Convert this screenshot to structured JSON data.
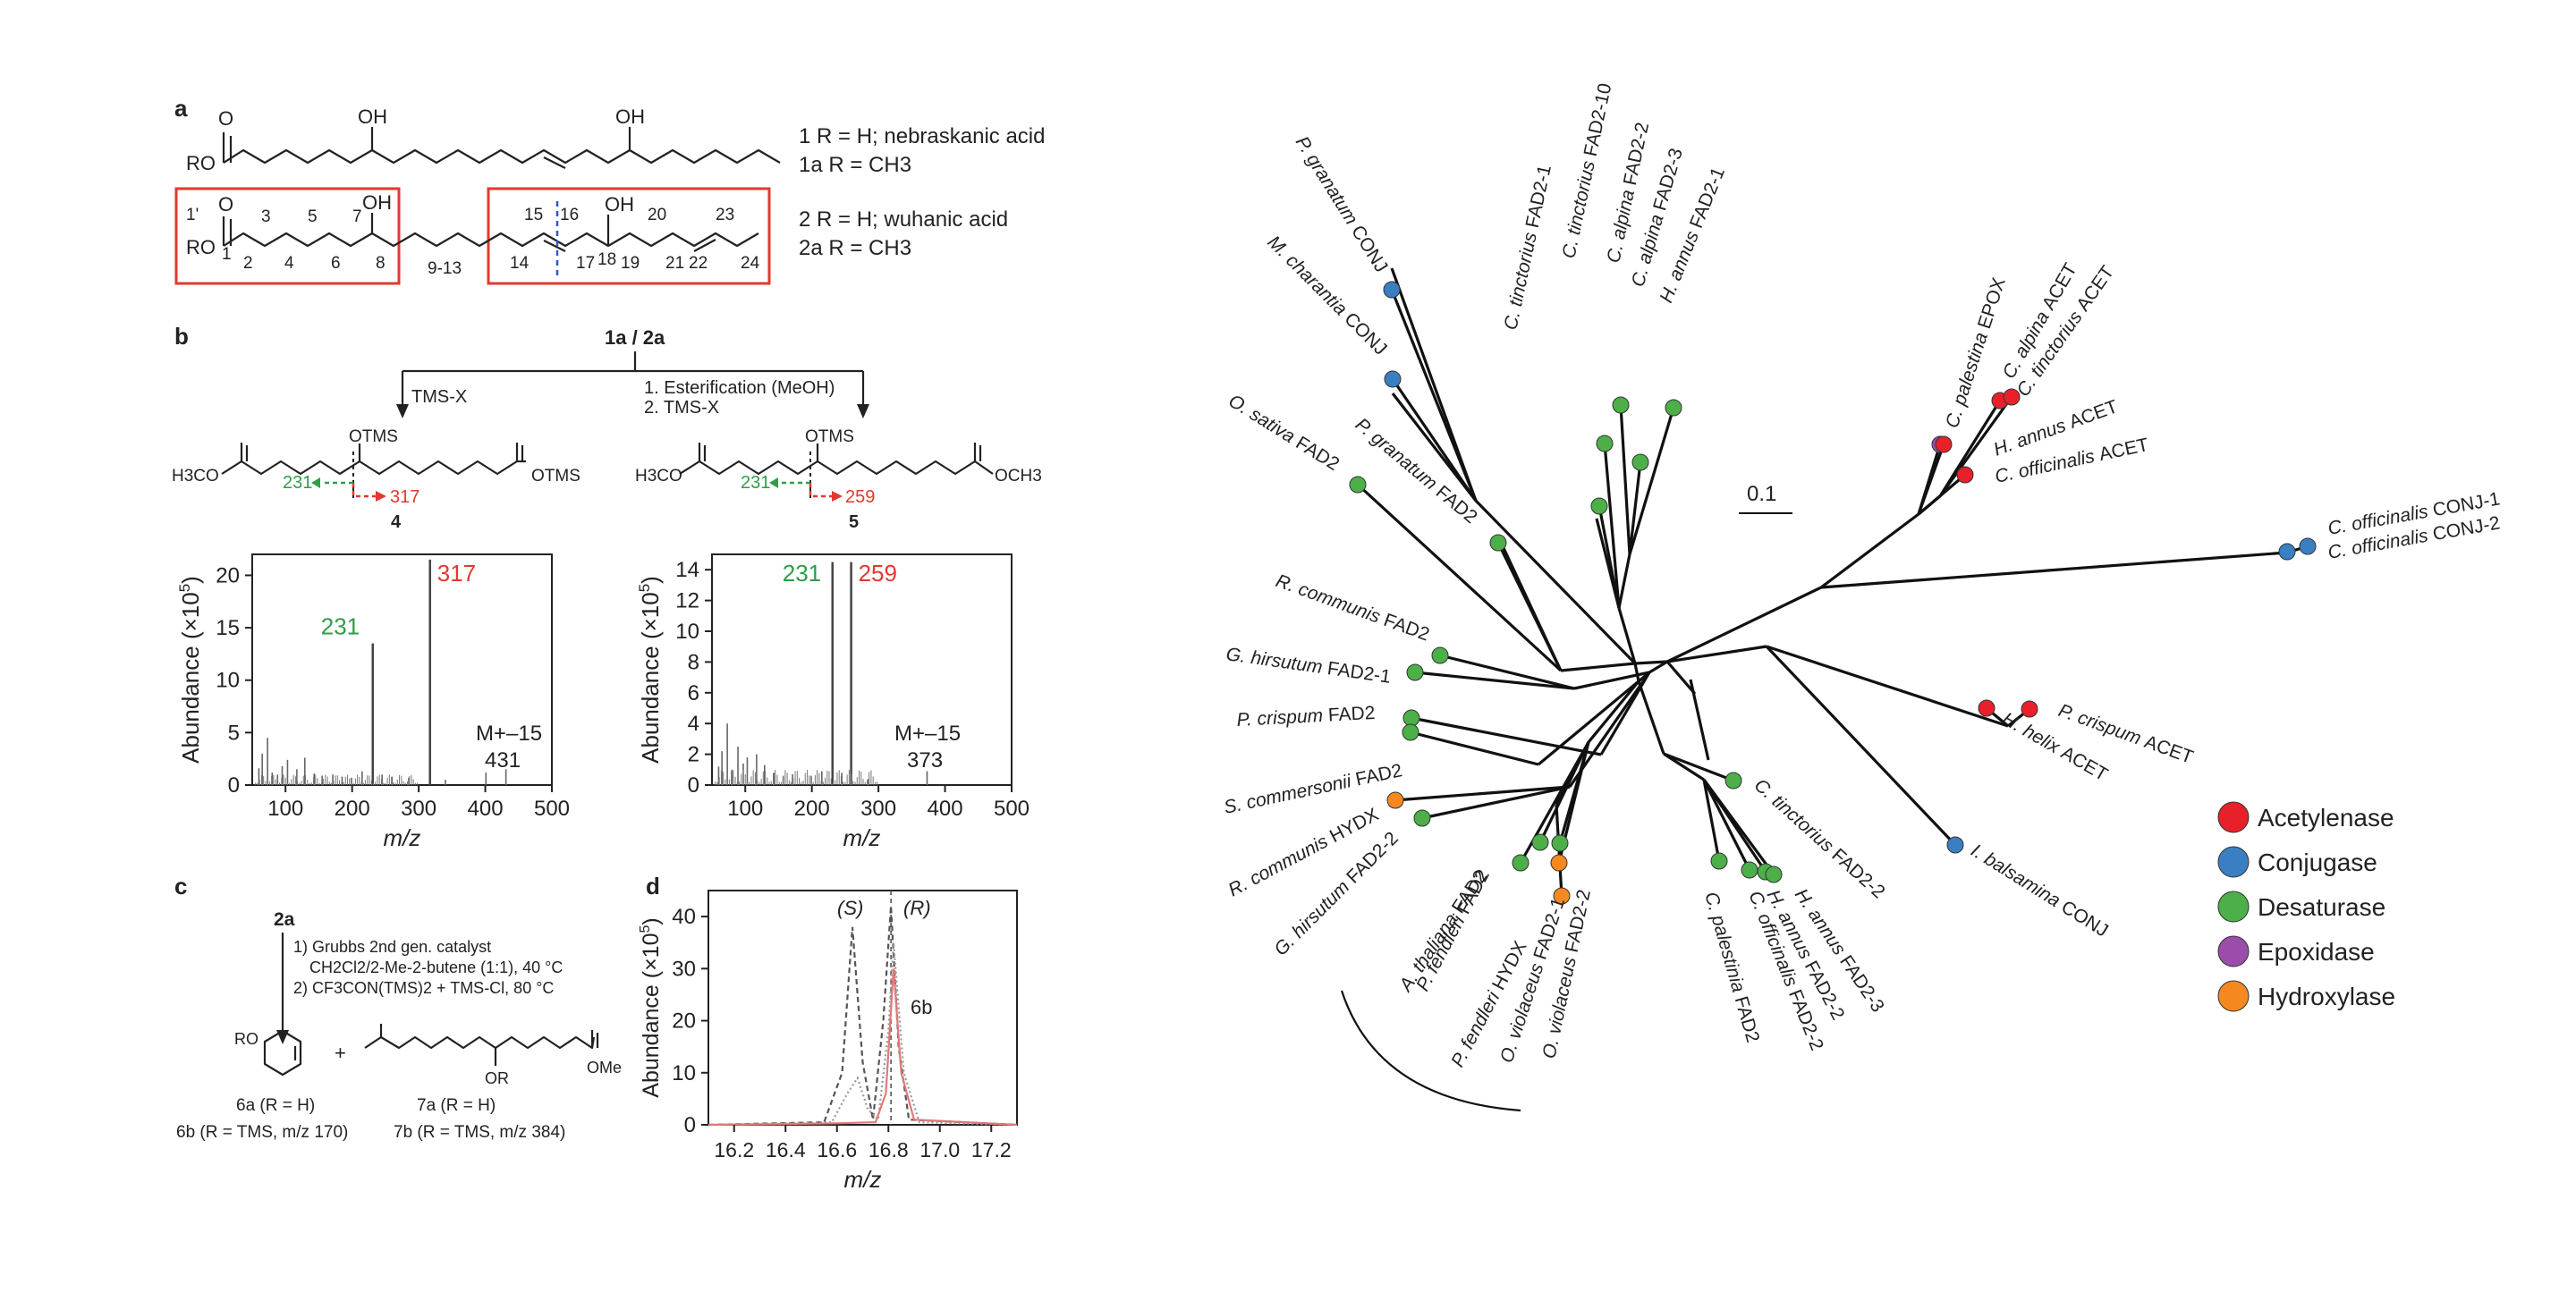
{
  "colors": {
    "acetylenase": "#e8202a",
    "conjugase": "#3a7fc3",
    "desaturase": "#4caf48",
    "epoxidase": "#9b4dab",
    "hydroxylase": "#f5891f",
    "accent_green": "#2e9e49",
    "accent_red": "#e03a2f"
  },
  "panel_a": {
    "label": "a",
    "line1_main": "1 R = H; nebraskanic acid",
    "line1_sub": "1a R = CH3",
    "line2_main": "2 R = H; wuhanic acid",
    "line2_sub": "2a R = CH3",
    "oh": "OH",
    "o": "O",
    "ro": "RO",
    "numbers": [
      "1'",
      "1",
      "2",
      "3",
      "4",
      "5",
      "6",
      "7",
      "8",
      "9-13",
      "14",
      "15",
      "16",
      "17",
      "18",
      "19",
      "20",
      "21",
      "22",
      "23",
      "24"
    ]
  },
  "panel_b": {
    "label": "b",
    "start": "1a / 2a",
    "left_step": "TMS-X",
    "right_step1": "1. Esterification (MeOH)",
    "right_step2": "2. TMS-X",
    "cmpd4": "4",
    "cmpd5": "5",
    "frag_231": "231",
    "frag_317": "317",
    "frag_259": "259",
    "otms": "OTMS",
    "h3co": "H3CO",
    "och3": "OCH3",
    "ylabel": "Abundance (×10",
    "xlabel": "m/z",
    "mplus_left": "M+–15",
    "mplus_left_val": "431",
    "mplus_right": "M+–15",
    "mplus_right_val": "373"
  },
  "panel_c": {
    "label": "c",
    "start": "2a",
    "step1": "1) Grubbs 2nd gen. catalyst",
    "step1b": "CH2Cl2/2-Me-2-butene (1:1), 40 °C",
    "step2": "2) CF3CON(TMS)2 + TMS-Cl, 80 °C",
    "plus": "+",
    "ro": "RO",
    "or": "OR",
    "ome": "OMe",
    "p6a": "6a (R = H)",
    "p6b": "6b (R = TMS, m/z 170)",
    "p7a": "7a (R = H)",
    "p7b": "7b (R = TMS, m/z 384)"
  },
  "panel_d": {
    "label": "d",
    "s_label": "(S)",
    "r_label": "(R)",
    "peak_label": "6b",
    "ylabel": "Abundance (×10",
    "xlabel": "m/z"
  },
  "chart_data": [
    {
      "type": "bar",
      "title": "",
      "xlabel": "m/z",
      "ylabel": "Abundance (×10^5)",
      "xlim": [
        50,
        500
      ],
      "ylim": [
        0,
        22
      ],
      "xticks": [
        100,
        200,
        300,
        400,
        500
      ],
      "yticks": [
        0,
        5,
        10,
        15,
        20
      ],
      "peaks": [
        {
          "x": 60,
          "y": 1.6
        },
        {
          "x": 65,
          "y": 3.0
        },
        {
          "x": 73,
          "y": 4.5
        },
        {
          "x": 80,
          "y": 1.2
        },
        {
          "x": 88,
          "y": 1.0
        },
        {
          "x": 95,
          "y": 1.8
        },
        {
          "x": 103,
          "y": 2.4
        },
        {
          "x": 117,
          "y": 1.5
        },
        {
          "x": 129,
          "y": 2.6
        },
        {
          "x": 143,
          "y": 1.1
        },
        {
          "x": 155,
          "y": 0.9
        },
        {
          "x": 171,
          "y": 1.0
        },
        {
          "x": 185,
          "y": 0.8
        },
        {
          "x": 199,
          "y": 0.7
        },
        {
          "x": 215,
          "y": 1.3
        },
        {
          "x": 231,
          "y": 13.5
        },
        {
          "x": 245,
          "y": 1.0
        },
        {
          "x": 260,
          "y": 0.8
        },
        {
          "x": 285,
          "y": 0.7
        },
        {
          "x": 317,
          "y": 21.5
        },
        {
          "x": 340,
          "y": 0.5
        },
        {
          "x": 401,
          "y": 1.2
        },
        {
          "x": 431,
          "y": 1.5
        }
      ],
      "labels": [
        {
          "x": 317,
          "text": "317"
        },
        {
          "x": 231,
          "text": "231"
        }
      ]
    },
    {
      "type": "bar",
      "title": "",
      "xlabel": "m/z",
      "ylabel": "Abundance (×10^5)",
      "xlim": [
        50,
        500
      ],
      "ylim": [
        0,
        15
      ],
      "xticks": [
        100,
        200,
        300,
        400,
        500
      ],
      "yticks": [
        0,
        2,
        4,
        6,
        8,
        10,
        12,
        14
      ],
      "peaks": [
        {
          "x": 60,
          "y": 1.2
        },
        {
          "x": 65,
          "y": 2.2
        },
        {
          "x": 73,
          "y": 4.0
        },
        {
          "x": 80,
          "y": 1.0
        },
        {
          "x": 89,
          "y": 2.5
        },
        {
          "x": 97,
          "y": 1.4
        },
        {
          "x": 103,
          "y": 1.8
        },
        {
          "x": 117,
          "y": 2.0
        },
        {
          "x": 129,
          "y": 1.3
        },
        {
          "x": 143,
          "y": 0.8
        },
        {
          "x": 157,
          "y": 0.6
        },
        {
          "x": 171,
          "y": 0.7
        },
        {
          "x": 199,
          "y": 0.6
        },
        {
          "x": 215,
          "y": 0.9
        },
        {
          "x": 231,
          "y": 14.5
        },
        {
          "x": 245,
          "y": 0.8
        },
        {
          "x": 259,
          "y": 14.5
        },
        {
          "x": 285,
          "y": 0.4
        },
        {
          "x": 373,
          "y": 0.9
        }
      ],
      "labels": [
        {
          "x": 231,
          "text": "231"
        },
        {
          "x": 259,
          "text": "259"
        }
      ]
    },
    {
      "type": "line",
      "title": "",
      "xlabel": "m/z",
      "ylabel": "Abundance (×10^5)",
      "xlim": [
        16.1,
        17.3
      ],
      "ylim": [
        0,
        45
      ],
      "xticks": [
        16.2,
        16.4,
        16.6,
        16.8,
        17.0,
        17.2
      ],
      "yticks": [
        0,
        10,
        20,
        30,
        40
      ],
      "series": [
        {
          "color": "#555555",
          "style": "dashed",
          "points": [
            [
              16.1,
              0
            ],
            [
              16.55,
              0.5
            ],
            [
              16.62,
              10
            ],
            [
              16.66,
              38
            ],
            [
              16.7,
              12
            ],
            [
              16.74,
              1
            ],
            [
              16.78,
              20
            ],
            [
              16.81,
              42
            ],
            [
              16.84,
              15
            ],
            [
              16.88,
              1
            ],
            [
              17.3,
              0
            ]
          ]
        },
        {
          "color": "#999999",
          "style": "dotted",
          "points": [
            [
              16.1,
              0
            ],
            [
              16.58,
              0.5
            ],
            [
              16.64,
              6
            ],
            [
              16.68,
              9
            ],
            [
              16.72,
              3
            ],
            [
              16.76,
              1
            ],
            [
              16.8,
              18
            ],
            [
              16.82,
              35
            ],
            [
              16.86,
              10
            ],
            [
              16.92,
              0.5
            ],
            [
              17.3,
              0
            ]
          ]
        },
        {
          "color": "#e07a7a",
          "style": "solid",
          "points": [
            [
              16.1,
              0
            ],
            [
              16.6,
              0.3
            ],
            [
              16.75,
              0.5
            ],
            [
              16.79,
              6
            ],
            [
              16.82,
              30
            ],
            [
              16.85,
              10
            ],
            [
              16.9,
              1
            ],
            [
              17.3,
              0
            ]
          ]
        }
      ]
    }
  ],
  "tree": {
    "scale_label": "0.1",
    "legend": [
      {
        "label": "Acetylenase",
        "color_key": "acetylenase"
      },
      {
        "label": "Conjugase",
        "color_key": "conjugase"
      },
      {
        "label": "Desaturase",
        "color_key": "desaturase"
      },
      {
        "label": "Epoxidase",
        "color_key": "epoxidase"
      },
      {
        "label": "Hydroxylase",
        "color_key": "hydroxylase"
      }
    ],
    "leaves": [
      {
        "species": "P. granatum",
        "gene": "CONJ",
        "type": "conjugase"
      },
      {
        "species": "M. charantia",
        "gene": "CONJ",
        "type": "conjugase"
      },
      {
        "species": "O. sativa",
        "gene": "FAD2",
        "type": "desaturase"
      },
      {
        "species": "P. granatum",
        "gene": "FAD2",
        "type": "desaturase"
      },
      {
        "species": "C. tinctorius",
        "gene": "FAD2-1",
        "type": "desaturase"
      },
      {
        "species": "C. tinctorius",
        "gene": "FAD2-10",
        "type": "desaturase"
      },
      {
        "species": "C. alpina",
        "gene": "FAD2-2",
        "type": "desaturase"
      },
      {
        "species": "C. alpina",
        "gene": "FAD2-3",
        "type": "desaturase"
      },
      {
        "species": "H. annus",
        "gene": "FAD2-1",
        "type": "desaturase"
      },
      {
        "species": "C. palestina",
        "gene": "EPOX",
        "type": "epoxidase"
      },
      {
        "species": "C. alpina",
        "gene": "ACET",
        "type": "acetylenase"
      },
      {
        "species": "C. tinctorius",
        "gene": "ACET",
        "type": "acetylenase"
      },
      {
        "species": "H. annus",
        "gene": "ACET",
        "type": "acetylenase"
      },
      {
        "species": "C. officinalis",
        "gene": "ACET",
        "type": "acetylenase"
      },
      {
        "species": "C. officinalis",
        "gene": "CONJ-1",
        "type": "conjugase"
      },
      {
        "species": "C. officinalis",
        "gene": "CONJ-2",
        "type": "conjugase"
      },
      {
        "species": "R. communis",
        "gene": "FAD2",
        "type": "desaturase"
      },
      {
        "species": "G. hirsutum",
        "gene": "FAD2-1",
        "type": "desaturase"
      },
      {
        "species": "P. crispum",
        "gene": "FAD2",
        "type": "desaturase"
      },
      {
        "species": "S. commersonii",
        "gene": "FAD2",
        "type": "desaturase"
      },
      {
        "species": "R. communis",
        "gene": "HYDX",
        "type": "hydroxylase"
      },
      {
        "species": "G. hirsutum",
        "gene": "FAD2-2",
        "type": "desaturase"
      },
      {
        "species": "A. thaliana",
        "gene": "FAD2",
        "type": "desaturase"
      },
      {
        "species": "P. fendleri",
        "gene": "FAD2",
        "type": "desaturase"
      },
      {
        "species": "P. fendleri",
        "gene": "HYDX",
        "type": "hydroxylase"
      },
      {
        "species": "O. violaceus",
        "gene": "FAD2-1",
        "type": "desaturase"
      },
      {
        "species": "O. violaceus",
        "gene": "FAD2-2",
        "type": "hydroxylase"
      },
      {
        "species": "C. palestinia",
        "gene": "FAD2",
        "type": "desaturase"
      },
      {
        "species": "C. officinalis",
        "gene": "FAD2-2",
        "type": "desaturase"
      },
      {
        "species": "H. annus",
        "gene": "FAD2-2",
        "type": "desaturase"
      },
      {
        "species": "H. annus",
        "gene": "FAD2-3",
        "type": "desaturase"
      },
      {
        "species": "C. tinctorius",
        "gene": "FAD2-2",
        "type": "desaturase"
      },
      {
        "species": "P. crispum",
        "gene": "ACET",
        "type": "acetylenase"
      },
      {
        "species": "H. helix",
        "gene": "ACET",
        "type": "acetylenase"
      },
      {
        "species": "I. balsamina",
        "gene": "CONJ",
        "type": "conjugase"
      }
    ]
  }
}
